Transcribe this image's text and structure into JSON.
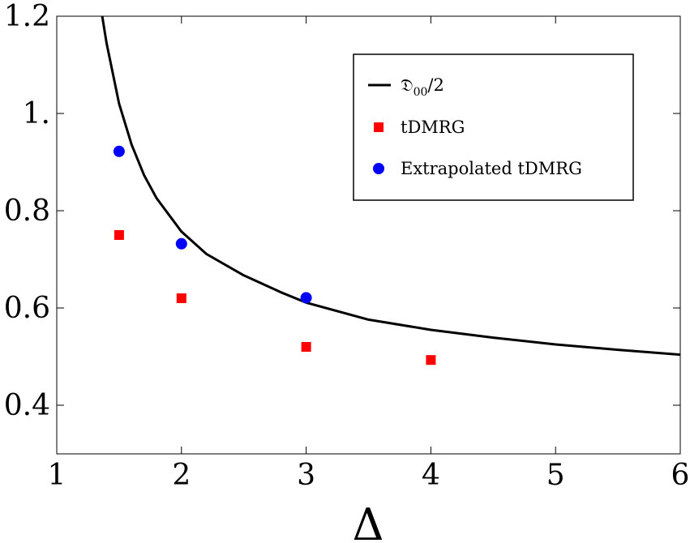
{
  "chart_data": {
    "type": "scatter",
    "xlabel": "Δ",
    "ylabel": "",
    "xlim": [
      1,
      6
    ],
    "ylim": [
      0.3,
      1.2
    ],
    "x_ticks": [
      {
        "value": 1,
        "label": "1"
      },
      {
        "value": 2,
        "label": "2"
      },
      {
        "value": 3,
        "label": "3"
      },
      {
        "value": 4,
        "label": "4"
      },
      {
        "value": 5,
        "label": "5"
      },
      {
        "value": 6,
        "label": "6"
      }
    ],
    "y_ticks": [
      {
        "value": 0.4,
        "label": "0.4"
      },
      {
        "value": 0.6,
        "label": "0.6"
      },
      {
        "value": 0.8,
        "label": "0.8"
      },
      {
        "value": 1.0,
        "label": "1."
      },
      {
        "value": 1.2,
        "label": "1.2"
      }
    ],
    "grid": false,
    "legend_position": "top-right",
    "series": [
      {
        "name": "D00/2",
        "legend_label": {
          "main": "𝔇",
          "sub": "00",
          "tail": "/2"
        },
        "kind": "line",
        "color": "#000000",
        "x": [
          1.36,
          1.4,
          1.5,
          1.6,
          1.7,
          1.8,
          2.0,
          2.2,
          2.5,
          2.8,
          3.0,
          3.5,
          4.0,
          4.5,
          5.0,
          5.5,
          6.0
        ],
        "y": [
          1.207,
          1.144,
          1.02,
          0.936,
          0.873,
          0.826,
          0.757,
          0.711,
          0.667,
          0.632,
          0.611,
          0.576,
          0.555,
          0.539,
          0.525,
          0.514,
          0.504
        ]
      },
      {
        "name": "tDMRG",
        "kind": "marker",
        "marker": "square",
        "color": "#ff0000",
        "x": [
          1.5,
          2,
          3,
          4
        ],
        "y": [
          0.75,
          0.62,
          0.52,
          0.493
        ]
      },
      {
        "name": "Extrapolated tDMRG",
        "kind": "marker",
        "marker": "circle",
        "color": "#0000ff",
        "x": [
          1.5,
          2,
          3
        ],
        "y": [
          0.922,
          0.732,
          0.621
        ]
      }
    ]
  }
}
